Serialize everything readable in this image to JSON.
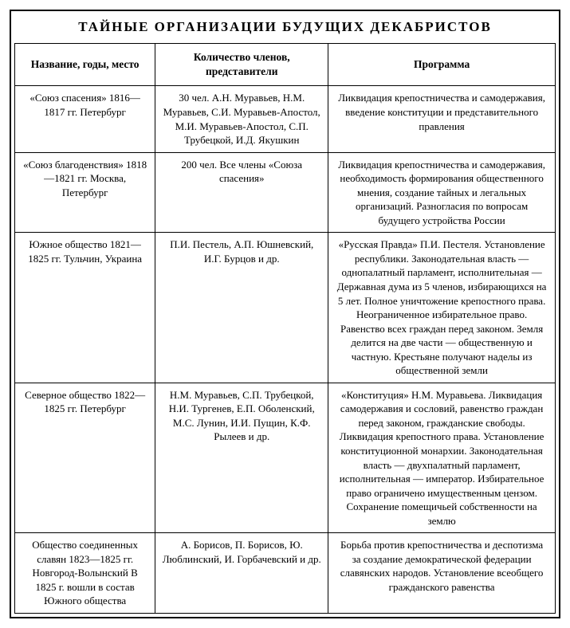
{
  "title": "ТАЙНЫЕ  ОРГАНИЗАЦИИ  БУДУЩИХ  ДЕКАБРИСТОВ",
  "columns": [
    "Название, годы, место",
    "Количество членов, представители",
    "Программа"
  ],
  "rows": [
    {
      "name": "«Союз спасения» 1816—1817 гг. Петербург",
      "members": "30 чел. А.Н. Муравьев, Н.М. Муравьев, С.И. Муравьев-Апостол, М.И. Муравьев-Апостол, С.П. Трубецкой, И.Д. Якушкин",
      "program": "Ликвидация крепостничества и самодержавия, введение конституции и представительного правления"
    },
    {
      "name": "«Союз благоденствия» 1818—1821 гг. Москва, Петербург",
      "members": "200 чел. Все члены «Союза спасения»",
      "program": "Ликвидация крепостничества и самодержавия, необходимость формирования общественного мнения, создание тайных и легальных организаций. Разногласия по вопросам будущего устройства России"
    },
    {
      "name": "Южное общество 1821—1825 гг. Тульчин, Украина",
      "members": "П.И. Пестель, А.П. Юшневский, И.Г. Бурцов и др.",
      "program": "«Русская Правда» П.И. Пестеля. Установление республики. Законодательная власть — однопалатный парламент, исполнительная — Державная дума из 5 членов, избирающихся на 5 лет. Полное уничтожение крепостного права. Неограниченное избирательное право. Равенство всех граждан перед законом. Земля делится на две части — общественную и частную. Крестьяне получают наделы из общественной земли"
    },
    {
      "name": "Северное общество 1822—1825 гг. Петербург",
      "members": "Н.М. Муравьев, С.П. Трубецкой, Н.И. Тургенев, Е.П. Оболенский, М.С. Лунин, И.И. Пущин, К.Ф. Рылеев и др.",
      "program": "«Конституция» Н.М. Муравьева. Ликвидация самодержавия и сословий, равенство граждан перед законом, гражданские свободы. Ликвидация крепостного права. Установление конституционной монархии. Законодательная власть — двухпалатный парламент, исполнительная — император. Избирательное право ограничено имущественным цензом. Сохранение помещичьей собственности на землю"
    },
    {
      "name": "Общество соединенных славян 1823—1825 гг. Новгород-Волынский В 1825 г. вошли в состав Южного общества",
      "members": "А. Борисов, П. Борисов, Ю. Люблинский, И. Горбачевский и др.",
      "program": "Борьба против крепостничества и деспотизма за создание демократической федерации славянских народов. Установление всеобщего гражданского равенства"
    }
  ],
  "style": {
    "border_color": "#000000",
    "background_color": "#ffffff",
    "text_color": "#000000",
    "title_fontsize": 17,
    "header_fontsize": 13.5,
    "cell_fontsize": 13,
    "font_family": "Times New Roman"
  }
}
